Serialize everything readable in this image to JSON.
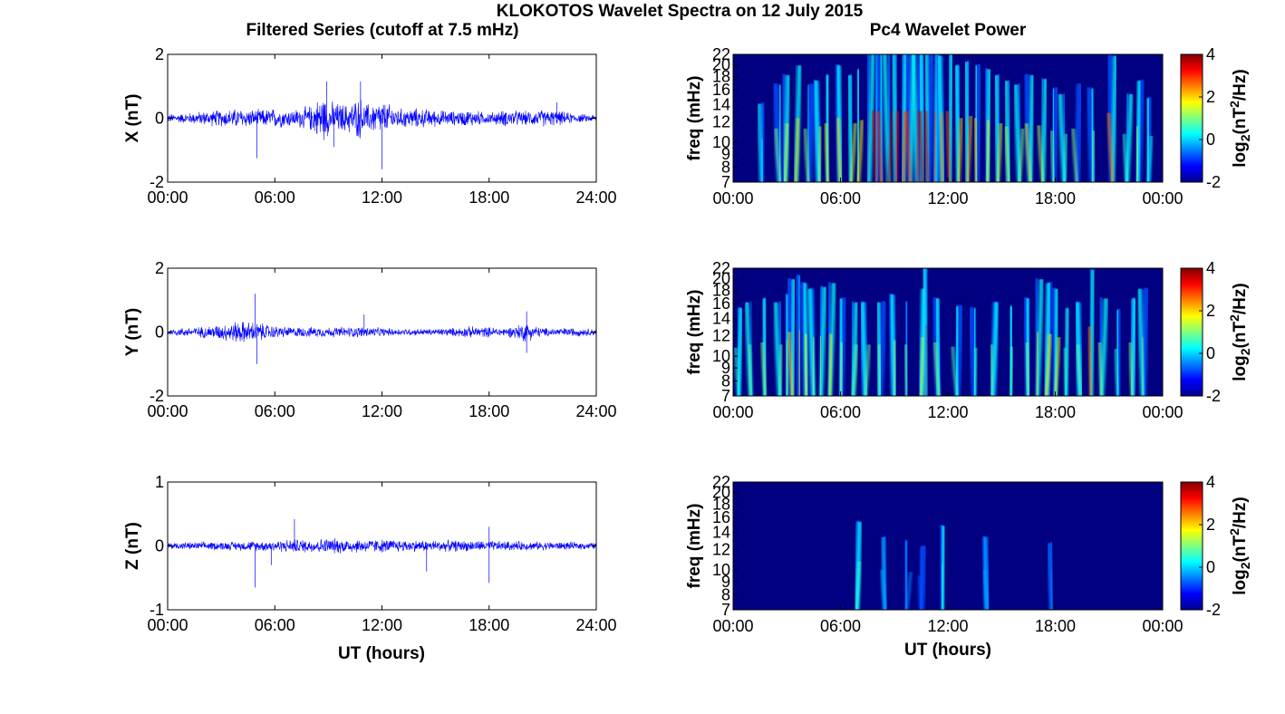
{
  "figure": {
    "title": "KLOKOTOS Wavelet Spectra on 12 July 2015",
    "left_title": "Filtered Series (cutoff at 7.5 mHz)",
    "right_title": "Pc4 Wavelet Power",
    "x_label": "UT (hours)"
  },
  "chart_data": [
    {
      "type": "line",
      "panel": "X filtered series",
      "ylabel": "X (nT)",
      "ylim": [
        -2,
        2
      ],
      "yticks": [
        "-2",
        "0",
        "2"
      ],
      "xlim": [
        0,
        24
      ],
      "xticks": [
        "00:00",
        "06:00",
        "12:00",
        "18:00",
        "24:00"
      ],
      "series_color": "#0000ff",
      "series": [
        {
          "x": [
            0,
            1,
            2,
            3,
            4,
            5,
            6,
            7,
            8,
            8.7,
            9,
            10,
            10.8,
            11,
            12,
            13,
            14,
            15,
            16,
            17,
            18,
            19,
            20,
            21,
            22,
            23,
            24
          ],
          "amplitude": [
            0.15,
            0.18,
            0.25,
            0.3,
            0.35,
            0.3,
            0.35,
            0.3,
            0.45,
            0.85,
            0.6,
            0.5,
            0.75,
            0.5,
            0.6,
            0.35,
            0.35,
            0.3,
            0.25,
            0.3,
            0.2,
            0.3,
            0.25,
            0.3,
            0.25,
            0.15,
            0.12
          ],
          "spikes": [
            {
              "x": 5.0,
              "y": -1.25
            },
            {
              "x": 8.9,
              "y": 1.15
            },
            {
              "x": 10.8,
              "y": 1.15
            },
            {
              "x": 12.0,
              "y": -1.6
            },
            {
              "x": 9.3,
              "y": -0.9
            },
            {
              "x": 21.8,
              "y": 0.5
            }
          ]
        }
      ]
    },
    {
      "type": "line",
      "panel": "Y filtered series",
      "ylabel": "Y (nT)",
      "ylim": [
        -2,
        2
      ],
      "yticks": [
        "-2",
        "0",
        "2"
      ],
      "xlim": [
        0,
        24
      ],
      "xticks": [
        "00:00",
        "06:00",
        "12:00",
        "18:00",
        "24:00"
      ],
      "series_color": "#0000ff",
      "series": [
        {
          "x": [
            0,
            1,
            2,
            3,
            4,
            5,
            6,
            7,
            8,
            9,
            10,
            11,
            12,
            13,
            14,
            15,
            16,
            17,
            18,
            19,
            20,
            21,
            22,
            23,
            24
          ],
          "amplitude": [
            0.12,
            0.15,
            0.2,
            0.28,
            0.4,
            0.35,
            0.22,
            0.18,
            0.18,
            0.18,
            0.18,
            0.2,
            0.15,
            0.12,
            0.12,
            0.12,
            0.15,
            0.2,
            0.18,
            0.15,
            0.35,
            0.15,
            0.15,
            0.15,
            0.12
          ],
          "spikes": [
            {
              "x": 4.9,
              "y": 1.2
            },
            {
              "x": 5.0,
              "y": -1.0
            },
            {
              "x": 20.1,
              "y": 0.65
            },
            {
              "x": 20.1,
              "y": -0.65
            },
            {
              "x": 11.0,
              "y": 0.55
            }
          ]
        }
      ]
    },
    {
      "type": "line",
      "panel": "Z filtered series",
      "ylabel": "Z (nT)",
      "ylim": [
        -1,
        1
      ],
      "yticks": [
        "-1",
        "0",
        "1"
      ],
      "xlim": [
        0,
        24
      ],
      "xticks": [
        "00:00",
        "06:00",
        "12:00",
        "18:00",
        "24:00"
      ],
      "series_color": "#0000ff",
      "series": [
        {
          "x": [
            0,
            2,
            4,
            6,
            7,
            8,
            9,
            10,
            11,
            12,
            14,
            16,
            18,
            20,
            22,
            24
          ],
          "amplitude": [
            0.06,
            0.07,
            0.08,
            0.1,
            0.12,
            0.12,
            0.14,
            0.13,
            0.12,
            0.12,
            0.1,
            0.1,
            0.09,
            0.08,
            0.07,
            0.06
          ],
          "spikes": [
            {
              "x": 4.9,
              "y": -0.65
            },
            {
              "x": 7.1,
              "y": 0.42
            },
            {
              "x": 18.0,
              "y": -0.58
            },
            {
              "x": 18.0,
              "y": 0.3
            },
            {
              "x": 14.5,
              "y": -0.4
            },
            {
              "x": 5.8,
              "y": -0.3
            }
          ]
        }
      ]
    },
    {
      "type": "heatmap",
      "panel": "X wavelet power",
      "ylabel": "freq (mHz)",
      "ylim": [
        7,
        22
      ],
      "yticks": [
        "7",
        "8",
        "9",
        "10",
        "12",
        "14",
        "16",
        "18",
        "20",
        "22"
      ],
      "xlim": [
        0,
        24
      ],
      "xticks": [
        "00:00",
        "06:00",
        "12:00",
        "18:00",
        "00:00"
      ],
      "colorbar": {
        "label": "log2(nT^2/Hz)",
        "ticks": [
          "-2",
          "0",
          "2",
          "4"
        ],
        "range": [
          -2,
          4
        ],
        "colormap": "jet"
      },
      "activity_hours": [
        1.6,
        2.6,
        2.9,
        3.5,
        4.2,
        4.8,
        5.3,
        6.0,
        6.6,
        7.0,
        7.6,
        8.0,
        8.3,
        8.7,
        9.1,
        9.5,
        9.9,
        10.3,
        10.6,
        10.9,
        11.3,
        11.7,
        12.1,
        12.6,
        13.1,
        13.6,
        14.2,
        14.8,
        15.4,
        16.0,
        16.6,
        17.3,
        17.9,
        18.5,
        19.2,
        20.1,
        21.2,
        22.0,
        22.6,
        23.2
      ],
      "peak_power": [
        0.0,
        1.0,
        1.5,
        2.0,
        1.0,
        1.2,
        1.5,
        2.0,
        1.5,
        1.8,
        2.8,
        3.5,
        3.0,
        3.8,
        3.2,
        2.8,
        3.0,
        3.5,
        3.8,
        3.6,
        3.0,
        2.5,
        2.8,
        2.0,
        2.2,
        2.0,
        1.8,
        1.5,
        1.2,
        1.0,
        1.5,
        1.3,
        0.8,
        0.5,
        1.0,
        0.8,
        2.5,
        0.5,
        1.2,
        0.3
      ]
    },
    {
      "type": "heatmap",
      "panel": "Y wavelet power",
      "ylabel": "freq (mHz)",
      "ylim": [
        7,
        22
      ],
      "yticks": [
        "7",
        "8",
        "9",
        "10",
        "12",
        "14",
        "16",
        "18",
        "20",
        "22"
      ],
      "xlim": [
        0,
        24
      ],
      "xticks": [
        "00:00",
        "06:00",
        "12:00",
        "18:00",
        "00:00"
      ],
      "colorbar": {
        "label": "log2(nT^2/Hz)",
        "ticks": [
          "-2",
          "0",
          "2",
          "4"
        ],
        "range": [
          -2,
          4
        ],
        "colormap": "jet"
      },
      "activity_hours": [
        0.3,
        1.0,
        1.8,
        2.6,
        3.0,
        3.3,
        3.7,
        4.1,
        4.5,
        4.9,
        5.4,
        6.0,
        6.7,
        7.4,
        8.2,
        9.0,
        9.7,
        10.5,
        10.8,
        11.5,
        12.5,
        13.5,
        14.5,
        15.5,
        16.5,
        17.0,
        17.5,
        18.0,
        18.6,
        19.4,
        20.0,
        20.6,
        21.5,
        22.3,
        22.9
      ],
      "peak_power": [
        0.5,
        0.8,
        1.0,
        0.8,
        1.2,
        2.0,
        2.2,
        1.8,
        1.5,
        1.6,
        1.8,
        1.0,
        0.8,
        0.8,
        0.8,
        1.2,
        0.8,
        1.5,
        3.5,
        1.0,
        0.6,
        0.5,
        0.8,
        0.6,
        1.0,
        2.0,
        1.8,
        1.5,
        0.5,
        0.8,
        2.5,
        1.0,
        0.4,
        1.0,
        1.5
      ]
    },
    {
      "type": "heatmap",
      "panel": "Z wavelet power",
      "ylabel": "freq (mHz)",
      "ylim": [
        7,
        22
      ],
      "yticks": [
        "7",
        "8",
        "9",
        "10",
        "12",
        "14",
        "16",
        "18",
        "20",
        "22"
      ],
      "xlim": [
        0,
        24
      ],
      "xticks": [
        "00:00",
        "06:00",
        "12:00",
        "18:00",
        "00:00"
      ],
      "colorbar": {
        "label": "log2(nT^2/Hz)",
        "ticks": [
          "-2",
          "0",
          "2",
          "4"
        ],
        "range": [
          -2,
          4
        ],
        "colormap": "jet"
      },
      "activity_hours": [
        6.9,
        8.5,
        9.7,
        11.7,
        14.2,
        17.8,
        10.5
      ],
      "peak_power": [
        0.5,
        -0.3,
        -0.5,
        0.3,
        -0.3,
        -0.6,
        -0.8
      ]
    }
  ]
}
